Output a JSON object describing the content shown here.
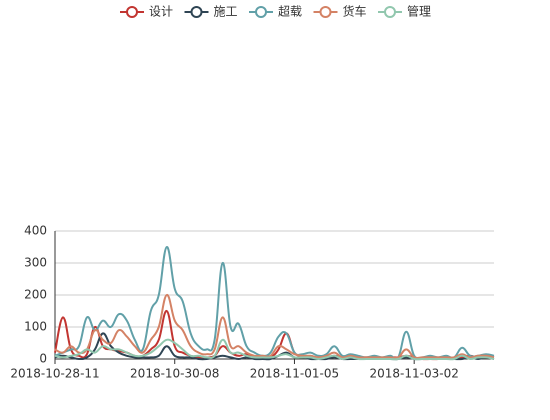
{
  "chart_data": {
    "type": "line",
    "categories": [
      "2018-10-28-11",
      null,
      null,
      null,
      null,
      null,
      null,
      null,
      null,
      null,
      null,
      null,
      null,
      null,
      null,
      "2018-10-30-08",
      null,
      null,
      null,
      null,
      null,
      null,
      null,
      null,
      null,
      null,
      null,
      null,
      null,
      null,
      "2018-11-01-05",
      null,
      null,
      null,
      null,
      null,
      null,
      null,
      null,
      null,
      null,
      null,
      null,
      null,
      null,
      "2018-11-03-02",
      null,
      null,
      null,
      null,
      null,
      null,
      null,
      null,
      null,
      null
    ],
    "series": [
      {
        "name": "设计",
        "color": "#c23531",
        "values": [
          20,
          130,
          30,
          10,
          15,
          100,
          40,
          30,
          25,
          20,
          10,
          10,
          30,
          60,
          150,
          40,
          20,
          10,
          5,
          5,
          10,
          40,
          20,
          10,
          15,
          5,
          5,
          5,
          30,
          80,
          20,
          10,
          5,
          5,
          5,
          10,
          5,
          5,
          5,
          5,
          5,
          0,
          5,
          5,
          10,
          5,
          0,
          0,
          0,
          5,
          0,
          5,
          10,
          5,
          10,
          5
        ]
      },
      {
        "name": "施工",
        "color": "#2f4554",
        "values": [
          5,
          10,
          5,
          0,
          5,
          30,
          80,
          40,
          20,
          10,
          5,
          5,
          5,
          10,
          40,
          10,
          5,
          5,
          0,
          0,
          5,
          10,
          5,
          0,
          5,
          0,
          0,
          0,
          10,
          20,
          5,
          5,
          0,
          0,
          0,
          5,
          0,
          0,
          0,
          0,
          0,
          0,
          0,
          0,
          5,
          0,
          0,
          0,
          0,
          0,
          0,
          0,
          5,
          0,
          5,
          0
        ]
      },
      {
        "name": "超载",
        "color": "#61a0a8",
        "values": [
          10,
          20,
          30,
          40,
          130,
          90,
          120,
          100,
          140,
          120,
          60,
          30,
          150,
          200,
          350,
          220,
          180,
          80,
          40,
          30,
          60,
          300,
          100,
          110,
          40,
          20,
          10,
          20,
          70,
          80,
          20,
          15,
          20,
          10,
          15,
          40,
          10,
          15,
          10,
          5,
          10,
          5,
          10,
          5,
          85,
          10,
          5,
          10,
          5,
          10,
          5,
          35,
          10,
          10,
          15,
          10
        ]
      },
      {
        "name": "货车",
        "color": "#d48265",
        "values": [
          30,
          20,
          40,
          20,
          30,
          90,
          60,
          50,
          90,
          70,
          40,
          20,
          60,
          100,
          200,
          120,
          90,
          40,
          20,
          15,
          30,
          130,
          40,
          40,
          20,
          10,
          10,
          10,
          40,
          30,
          15,
          10,
          10,
          5,
          10,
          20,
          5,
          10,
          5,
          5,
          5,
          5,
          5,
          5,
          30,
          5,
          5,
          5,
          5,
          5,
          5,
          15,
          5,
          10,
          10,
          5
        ]
      },
      {
        "name": "管理",
        "color": "#91c7ae",
        "values": [
          10,
          5,
          10,
          15,
          30,
          20,
          40,
          30,
          30,
          20,
          10,
          10,
          20,
          40,
          60,
          50,
          30,
          10,
          10,
          5,
          10,
          60,
          20,
          20,
          10,
          5,
          5,
          5,
          10,
          15,
          5,
          5,
          5,
          0,
          5,
          10,
          0,
          5,
          0,
          0,
          0,
          0,
          0,
          0,
          10,
          0,
          0,
          0,
          0,
          0,
          0,
          10,
          0,
          5,
          5,
          0
        ]
      }
    ],
    "ylim": [
      0,
      400
    ],
    "yticks": [
      0,
      100,
      200,
      300,
      400
    ],
    "grid": true,
    "legend": "top"
  }
}
